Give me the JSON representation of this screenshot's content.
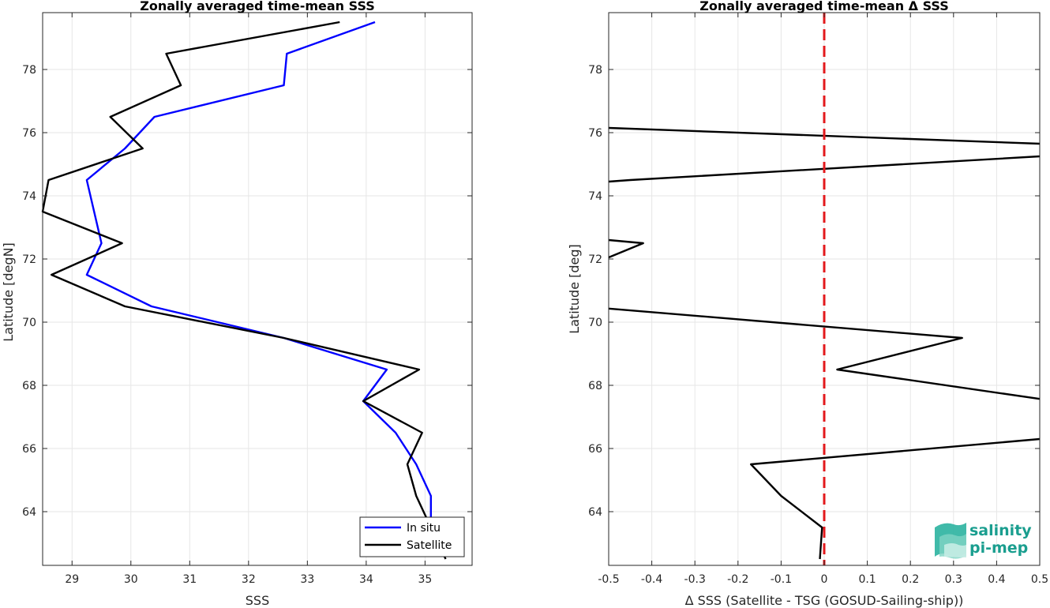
{
  "chart_data": [
    {
      "type": "line",
      "title": "Zonally averaged time-mean SSS",
      "xlabel": "SSS",
      "ylabel": "Latitude [degN]",
      "xlim": [
        28.5,
        35.8
      ],
      "ylim": [
        62.3,
        79.8
      ],
      "xticks": [
        29,
        30,
        31,
        32,
        33,
        34,
        35
      ],
      "yticks": [
        64,
        66,
        68,
        70,
        72,
        74,
        76,
        78
      ],
      "grid": true,
      "legend": "bottom-right",
      "series": [
        {
          "name": "In situ",
          "color": "#0000ff",
          "x": [
            34.15,
            32.65,
            32.6,
            30.4,
            29.9,
            29.25,
            29.5,
            29.25,
            30.35,
            32.6,
            34.35,
            33.95,
            34.5,
            34.85,
            35.1,
            35.1
          ],
          "y": [
            79.5,
            78.5,
            77.5,
            76.5,
            75.5,
            74.5,
            72.5,
            71.5,
            70.5,
            69.5,
            68.5,
            67.5,
            66.5,
            65.5,
            64.5,
            63.5
          ]
        },
        {
          "name": "Satellite",
          "color": "#000000",
          "x": [
            33.55,
            30.6,
            30.85,
            29.65,
            30.2,
            28.6,
            28.5,
            29.85,
            28.65,
            29.9,
            32.6,
            34.9,
            33.95,
            34.95,
            34.7,
            34.85,
            35.1,
            35.35
          ],
          "y": [
            79.5,
            78.5,
            77.5,
            76.5,
            75.5,
            74.5,
            73.5,
            72.5,
            71.5,
            70.5,
            69.5,
            68.5,
            67.5,
            66.5,
            65.5,
            64.5,
            63.5,
            62.5
          ]
        }
      ]
    },
    {
      "type": "line",
      "title": "Zonally averaged time-mean Δ SSS",
      "xlabel": "Δ SSS (Satellite - TSG (GOSUD-Sailing-ship))",
      "ylabel": "Latitude [deg]",
      "xlim": [
        -0.5,
        0.5
      ],
      "ylim": [
        62.3,
        79.8
      ],
      "xticks": [
        -0.5,
        -0.4,
        -0.3,
        -0.2,
        -0.1,
        0,
        0.1,
        0.2,
        0.3,
        0.4,
        0.5
      ],
      "xtick_labels": [
        "-0.5",
        "-0.4",
        "-0.3",
        "-0.2",
        "-0.1",
        "0",
        "0.1",
        "0.2",
        "0.3",
        "0.4",
        "0.5"
      ],
      "yticks": [
        64,
        66,
        68,
        70,
        72,
        74,
        76,
        78
      ],
      "grid": true,
      "reference_line": {
        "x": 0,
        "color": "#e3191c",
        "style": "dashed"
      },
      "series": [
        {
          "color": "#000000",
          "x": [
            -0.5,
            0.5
          ],
          "y": [
            76.15,
            75.65
          ]
        },
        {
          "color": "#000000",
          "x": [
            0.5,
            -0.45,
            -0.5
          ],
          "y": [
            75.25,
            74.5,
            74.45
          ]
        },
        {
          "color": "#000000",
          "x": [
            -0.5,
            -0.42,
            -0.5
          ],
          "y": [
            72.6,
            72.5,
            72.05
          ]
        },
        {
          "color": "#000000",
          "x": [
            -0.5,
            0.32,
            0.03,
            0.5
          ],
          "y": [
            70.43,
            69.5,
            68.5,
            67.57
          ]
        },
        {
          "color": "#000000",
          "x": [
            0.5,
            -0.17,
            -0.1,
            -0.005,
            -0.01
          ],
          "y": [
            66.3,
            65.5,
            64.5,
            63.5,
            62.5
          ]
        }
      ]
    }
  ],
  "legend": {
    "entries": [
      "In situ",
      "Satellite"
    ]
  },
  "logo": {
    "line1": "salinity",
    "line2": "pi-mep",
    "color": "#1a9e8f"
  }
}
